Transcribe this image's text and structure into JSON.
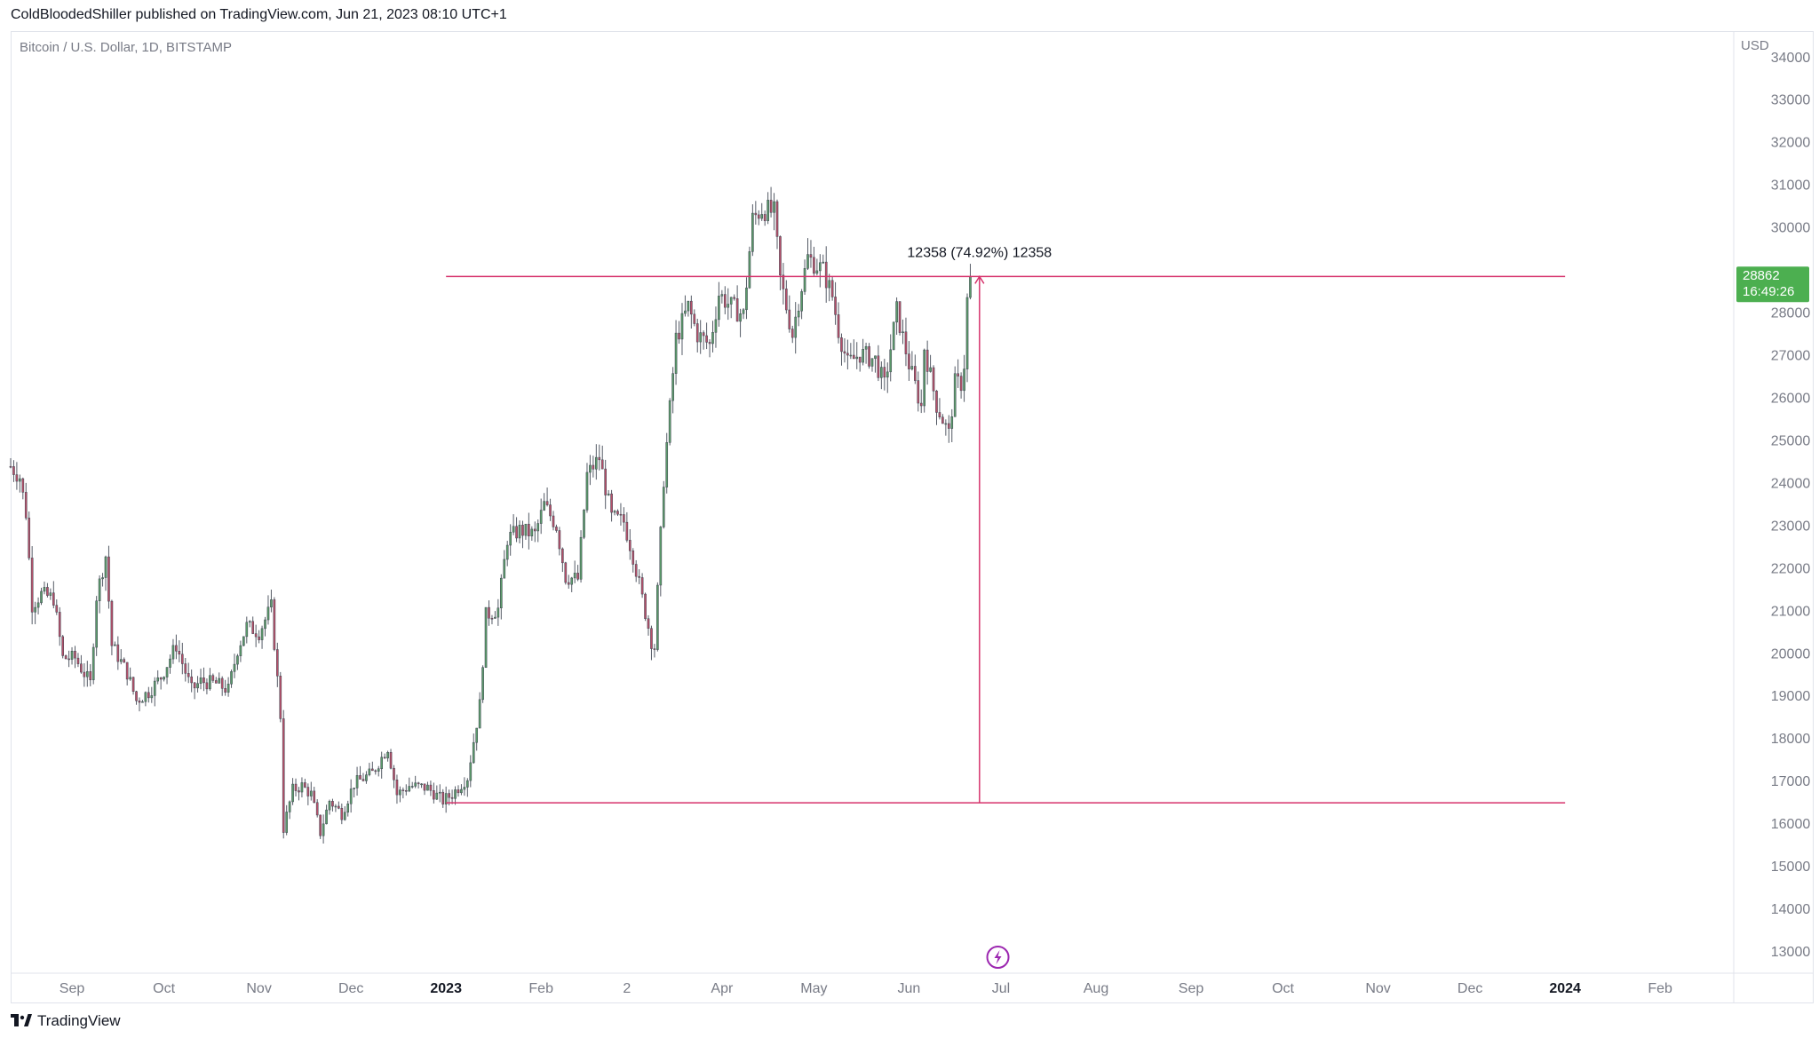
{
  "header": {
    "text": "ColdBloodedShiller published on TradingView.com, Jun 21, 2023 08:10 UTC+1"
  },
  "symbol": {
    "text": "Bitcoin / U.S. Dollar, 1D, BITSTAMP"
  },
  "footer": {
    "brand": "TradingView",
    "logo_icon": "tradingview-logo-icon"
  },
  "colors": {
    "up": "#26a69a",
    "up_body": "#5b9a6a",
    "down": "#b5506a",
    "annotation": "#d6336c",
    "axis_text": "#787b86",
    "last_price_bg": "#4caf50"
  },
  "chart_data": {
    "type": "candlestick",
    "currency_label": "USD",
    "y_ticks": [
      34000,
      33000,
      32000,
      31000,
      30000,
      29000,
      28000,
      27000,
      26000,
      25000,
      24000,
      23000,
      22000,
      21000,
      20000,
      19000,
      18000,
      17000,
      16000,
      15000,
      14000,
      13000
    ],
    "y_tick_labels": [
      "34000",
      "33000",
      "32000",
      "31000",
      "30000",
      "",
      "28000",
      "27000",
      "26000",
      "25000",
      "24000",
      "23000",
      "22000",
      "21000",
      "20000",
      "19000",
      "18000",
      "17000",
      "16000",
      "15000",
      "14000",
      "13000"
    ],
    "x_labels": [
      {
        "label": "Sep",
        "date": "2022-09-01",
        "bold": false
      },
      {
        "label": "Oct",
        "date": "2022-10-01",
        "bold": false
      },
      {
        "label": "Nov",
        "date": "2022-11-01",
        "bold": false
      },
      {
        "label": "Dec",
        "date": "2022-12-01",
        "bold": false
      },
      {
        "label": "2023",
        "date": "2023-01-01",
        "bold": true
      },
      {
        "label": "Feb",
        "date": "2023-02-01",
        "bold": false
      },
      {
        "label": "2",
        "date": "2023-03-01",
        "bold": false
      },
      {
        "label": "Apr",
        "date": "2023-04-01",
        "bold": false
      },
      {
        "label": "May",
        "date": "2023-05-01",
        "bold": false
      },
      {
        "label": "Jun",
        "date": "2023-06-01",
        "bold": false
      },
      {
        "label": "Jul",
        "date": "2023-07-01",
        "bold": false
      },
      {
        "label": "Aug",
        "date": "2023-08-01",
        "bold": false
      },
      {
        "label": "Sep",
        "date": "2023-09-01",
        "bold": false
      },
      {
        "label": "Oct",
        "date": "2023-10-01",
        "bold": false
      },
      {
        "label": "Nov",
        "date": "2023-11-01",
        "bold": false
      },
      {
        "label": "Dec",
        "date": "2023-12-01",
        "bold": false
      },
      {
        "label": "2024",
        "date": "2024-01-01",
        "bold": true
      },
      {
        "label": "Feb",
        "date": "2024-02-01",
        "bold": false
      }
    ],
    "ylim": [
      12500,
      34600
    ],
    "xlim": [
      "2022-08-12",
      "2024-02-25"
    ],
    "close_path": [
      [
        "2022-08-12",
        24400
      ],
      [
        "2022-08-15",
        24150
      ],
      [
        "2022-08-17",
        23300
      ],
      [
        "2022-08-19",
        21150
      ],
      [
        "2022-08-22",
        21400
      ],
      [
        "2022-08-26",
        21300
      ],
      [
        "2022-08-29",
        19900
      ],
      [
        "2022-09-02",
        19900
      ],
      [
        "2022-09-07",
        19300
      ],
      [
        "2022-09-09",
        21350
      ],
      [
        "2022-09-12",
        22300
      ],
      [
        "2022-09-14",
        20200
      ],
      [
        "2022-09-19",
        19550
      ],
      [
        "2022-09-22",
        18900
      ],
      [
        "2022-09-26",
        19100
      ],
      [
        "2022-09-30",
        19450
      ],
      [
        "2022-10-05",
        20200
      ],
      [
        "2022-10-10",
        19150
      ],
      [
        "2022-10-13",
        19350
      ],
      [
        "2022-10-18",
        19300
      ],
      [
        "2022-10-22",
        19150
      ],
      [
        "2022-10-25",
        20100
      ],
      [
        "2022-10-28",
        20650
      ],
      [
        "2022-11-01",
        20500
      ],
      [
        "2022-11-05",
        21100
      ],
      [
        "2022-11-08",
        18550
      ],
      [
        "2022-11-09",
        15900
      ],
      [
        "2022-11-12",
        16800
      ],
      [
        "2022-11-15",
        16900
      ],
      [
        "2022-11-18",
        16700
      ],
      [
        "2022-11-21",
        15800
      ],
      [
        "2022-11-24",
        16550
      ],
      [
        "2022-11-28",
        16250
      ],
      [
        "2022-12-02",
        16950
      ],
      [
        "2022-12-08",
        17200
      ],
      [
        "2022-12-13",
        17800
      ],
      [
        "2022-12-16",
        16700
      ],
      [
        "2022-12-20",
        16900
      ],
      [
        "2022-12-26",
        16850
      ],
      [
        "2022-12-31",
        16550
      ],
      [
        "2023-01-03",
        16700
      ],
      [
        "2023-01-08",
        17100
      ],
      [
        "2023-01-12",
        18800
      ],
      [
        "2023-01-14",
        20900
      ],
      [
        "2023-01-18",
        21050
      ],
      [
        "2023-01-21",
        22700
      ],
      [
        "2023-01-25",
        22900
      ],
      [
        "2023-01-30",
        22800
      ],
      [
        "2023-02-02",
        23500
      ],
      [
        "2023-02-06",
        23000
      ],
      [
        "2023-02-09",
        21800
      ],
      [
        "2023-02-13",
        21750
      ],
      [
        "2023-02-16",
        24200
      ],
      [
        "2023-02-20",
        24600
      ],
      [
        "2023-02-24",
        23200
      ],
      [
        "2023-02-28",
        23100
      ],
      [
        "2023-03-03",
        22300
      ],
      [
        "2023-03-09",
        20300
      ],
      [
        "2023-03-10",
        20150
      ],
      [
        "2023-03-13",
        24100
      ],
      [
        "2023-03-17",
        27400
      ],
      [
        "2023-03-21",
        28150
      ],
      [
        "2023-03-24",
        27500
      ],
      [
        "2023-03-28",
        27250
      ],
      [
        "2023-03-31",
        28450
      ],
      [
        "2023-04-04",
        28150
      ],
      [
        "2023-04-08",
        27950
      ],
      [
        "2023-04-11",
        30200
      ],
      [
        "2023-04-14",
        30450
      ],
      [
        "2023-04-18",
        30350
      ],
      [
        "2023-04-20",
        28800
      ],
      [
        "2023-04-24",
        27500
      ],
      [
        "2023-04-26",
        28300
      ],
      [
        "2023-04-29",
        29300
      ],
      [
        "2023-05-04",
        29000
      ],
      [
        "2023-05-07",
        28400
      ],
      [
        "2023-05-09",
        27600
      ],
      [
        "2023-05-12",
        26800
      ],
      [
        "2023-05-16",
        27050
      ],
      [
        "2023-05-21",
        26900
      ],
      [
        "2023-05-24",
        26300
      ],
      [
        "2023-05-28",
        28050
      ],
      [
        "2023-06-01",
        26800
      ],
      [
        "2023-06-05",
        25800
      ],
      [
        "2023-06-06",
        27200
      ],
      [
        "2023-06-10",
        25850
      ],
      [
        "2023-06-14",
        25150
      ],
      [
        "2023-06-16",
        26350
      ],
      [
        "2023-06-18",
        26350
      ],
      [
        "2023-06-19",
        26800
      ],
      [
        "2023-06-20",
        28300
      ],
      [
        "2023-06-21",
        28862
      ]
    ],
    "annotation": {
      "label": "12358 (74.92%) 12358",
      "start_date": "2023-01-01",
      "end_date": "2024-01-01",
      "low_price": 16500,
      "high_price": 28858,
      "arrow_date": "2023-06-24"
    },
    "last_price": {
      "value": "28862",
      "countdown": "16:49:26"
    }
  }
}
